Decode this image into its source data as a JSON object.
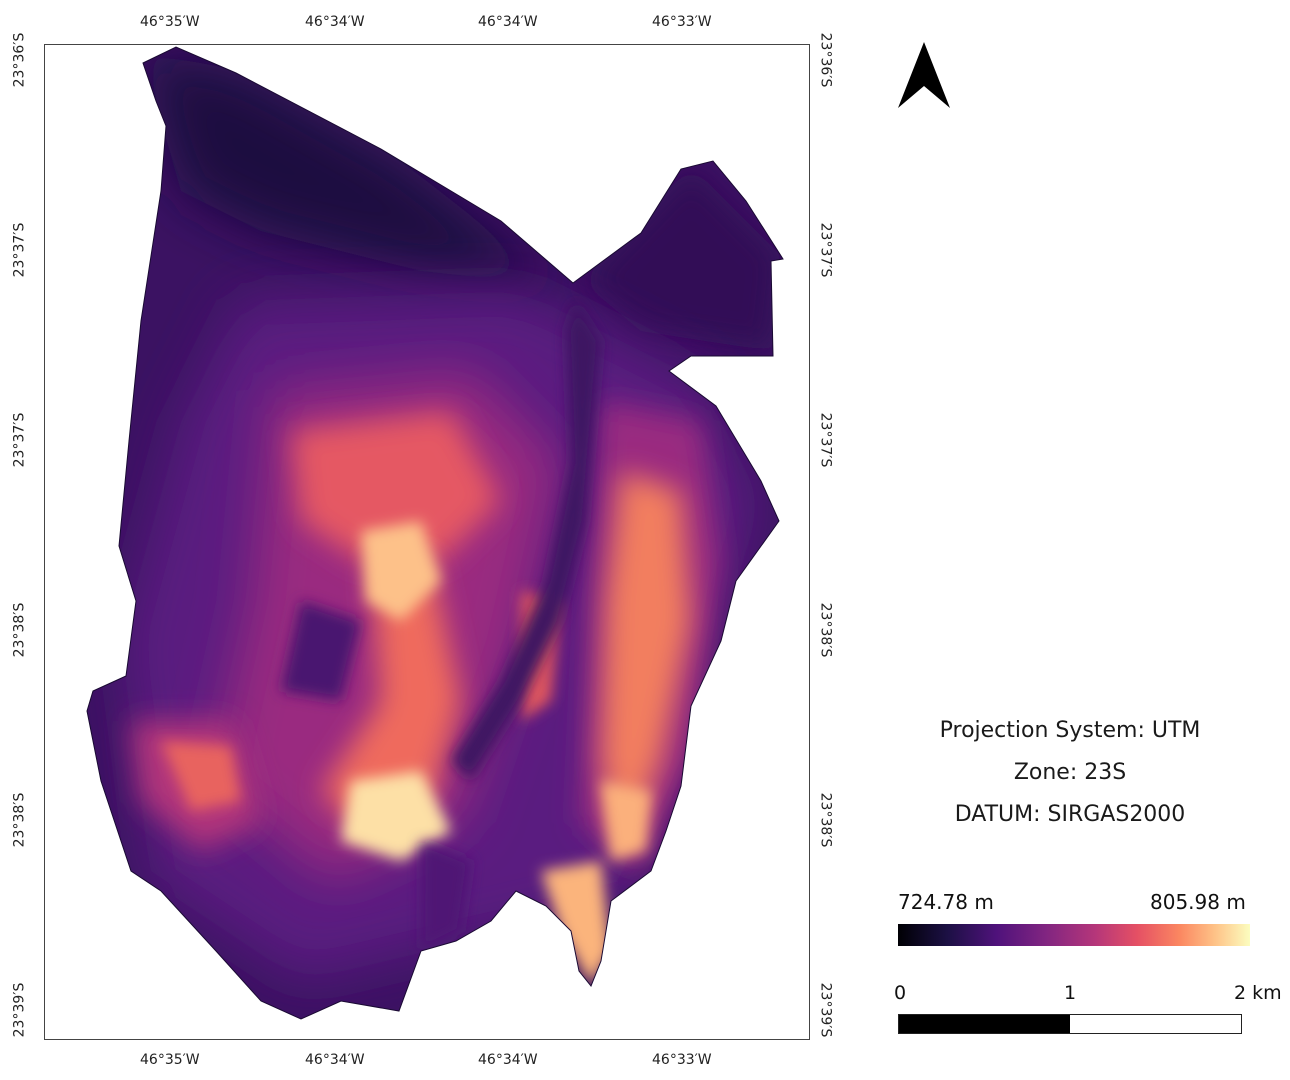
{
  "map": {
    "top_ticks": [
      "46°35′W",
      "46°34′W",
      "46°34′W",
      "46°33′W"
    ],
    "bottom_ticks": [
      "46°35′W",
      "46°34′W",
      "46°34′W",
      "46°33′W"
    ],
    "left_ticks": [
      "23°36′S",
      "23°37′S",
      "23°37′S",
      "23°38′S",
      "23°38′S",
      "23°39′S"
    ],
    "right_ticks": [
      "23°36′S",
      "23°37′S",
      "23°37′S",
      "23°38′S",
      "23°38′S",
      "23°39′S"
    ],
    "colormap": "magma"
  },
  "info": {
    "projection": "Projection System: UTM",
    "zone": "Zone: 23S",
    "datum": "DATUM: SIRGAS2000"
  },
  "legend": {
    "min": "724.78 m",
    "max": "805.98 m",
    "colors": [
      "#000004",
      "#1c1044",
      "#4f127b",
      "#812581",
      "#b5367a",
      "#e55064",
      "#fb8761",
      "#fec287",
      "#fcfdbf"
    ]
  },
  "scale": {
    "labels": [
      "0",
      "1",
      "2 km"
    ]
  }
}
